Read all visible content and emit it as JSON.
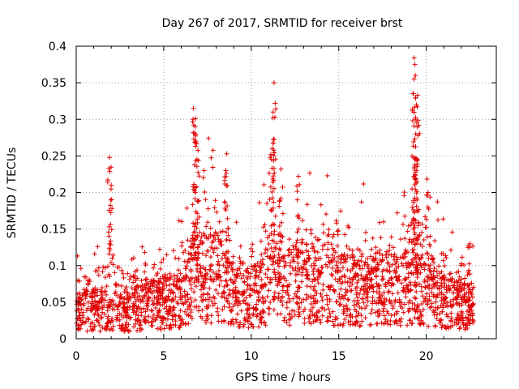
{
  "chart_data": {
    "type": "scatter",
    "title": "Day 267 of 2017, SRMTID for receiver brst",
    "xlabel": "GPS time / hours",
    "ylabel": "SRMTID / TECUs",
    "xlim": [
      0,
      24
    ],
    "ylim": [
      0,
      0.4
    ],
    "grid": true,
    "marker": "+",
    "series_color": "#e00000",
    "xticks": [
      {
        "value": 0,
        "label": "0"
      },
      {
        "value": 5,
        "label": "5"
      },
      {
        "value": 10,
        "label": "10"
      },
      {
        "value": 15,
        "label": "15"
      },
      {
        "value": 20,
        "label": "20"
      }
    ],
    "yticks": [
      {
        "value": 0,
        "label": "0"
      },
      {
        "value": 0.05,
        "label": "0.05"
      },
      {
        "value": 0.1,
        "label": "0.1"
      },
      {
        "value": 0.15,
        "label": "0.15"
      },
      {
        "value": 0.2,
        "label": "0.2"
      },
      {
        "value": 0.25,
        "label": "0.25"
      },
      {
        "value": 0.3,
        "label": "0.3"
      },
      {
        "value": 0.35,
        "label": "0.35"
      },
      {
        "value": 0.4,
        "label": "0.4"
      }
    ],
    "x_range_of_data": [
      0,
      22.7
    ],
    "baseline_profile": [
      [
        0,
        0.035
      ],
      [
        1,
        0.04
      ],
      [
        2,
        0.045
      ],
      [
        3,
        0.04
      ],
      [
        4,
        0.045
      ],
      [
        5,
        0.05
      ],
      [
        6,
        0.055
      ],
      [
        7,
        0.085
      ],
      [
        8,
        0.085
      ],
      [
        9,
        0.06
      ],
      [
        10,
        0.055
      ],
      [
        11,
        0.075
      ],
      [
        12,
        0.07
      ],
      [
        13,
        0.08
      ],
      [
        14,
        0.08
      ],
      [
        15,
        0.07
      ],
      [
        16,
        0.065
      ],
      [
        17,
        0.065
      ],
      [
        18,
        0.07
      ],
      [
        19,
        0.07
      ],
      [
        20,
        0.07
      ],
      [
        21,
        0.05
      ],
      [
        22,
        0.045
      ],
      [
        22.7,
        0.04
      ]
    ],
    "noted_peaks": [
      {
        "x": 1.9,
        "y": 0.248
      },
      {
        "x": 2.0,
        "y": 0.21
      },
      {
        "x": 6.7,
        "y": 0.315
      },
      {
        "x": 6.8,
        "y": 0.29
      },
      {
        "x": 6.85,
        "y": 0.27
      },
      {
        "x": 6.9,
        "y": 0.245
      },
      {
        "x": 7.3,
        "y": 0.23
      },
      {
        "x": 8.6,
        "y": 0.253
      },
      {
        "x": 8.55,
        "y": 0.23
      },
      {
        "x": 11.3,
        "y": 0.35
      },
      {
        "x": 11.25,
        "y": 0.31
      },
      {
        "x": 11.2,
        "y": 0.26
      },
      {
        "x": 11.7,
        "y": 0.232
      },
      {
        "x": 12.7,
        "y": 0.222
      },
      {
        "x": 19.3,
        "y": 0.384
      },
      {
        "x": 19.35,
        "y": 0.375
      },
      {
        "x": 19.3,
        "y": 0.355
      },
      {
        "x": 19.5,
        "y": 0.333
      },
      {
        "x": 19.4,
        "y": 0.3
      },
      {
        "x": 19.4,
        "y": 0.28
      },
      {
        "x": 19.45,
        "y": 0.23
      },
      {
        "x": 20.1,
        "y": 0.2
      },
      {
        "x": 22.5,
        "y": 0.13
      }
    ]
  }
}
